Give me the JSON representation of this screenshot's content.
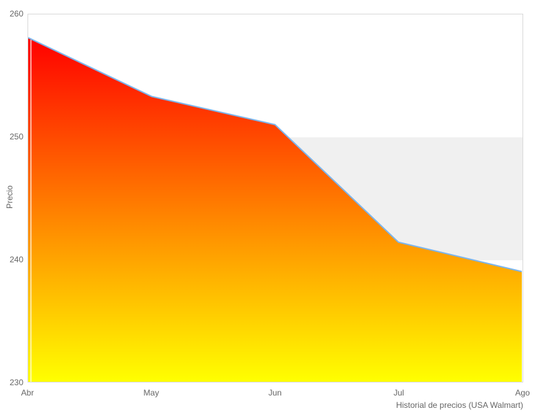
{
  "chart_data": {
    "type": "area",
    "categories": [
      "Abr",
      "May",
      "Jun",
      "Jul",
      "Ago"
    ],
    "values": [
      258.1,
      253.3,
      251,
      241.4,
      239
    ],
    "title": "",
    "xlabel": "",
    "ylabel": "Precio",
    "ylim": [
      230,
      260
    ],
    "yticks": [
      260,
      250,
      240,
      230
    ],
    "grid": "off",
    "legend": "off",
    "caption": "Historial de precios (USA Walmart)",
    "plot_band": {
      "from": 240,
      "to": 250,
      "color": "#f0f0f0"
    },
    "line_color": "#7cb5ec",
    "fill_gradient_top": "#ff0000",
    "fill_gradient_bottom": "#ffff00",
    "axis_border_color": "#d9d9d9",
    "tick_label_color": "#666666"
  }
}
